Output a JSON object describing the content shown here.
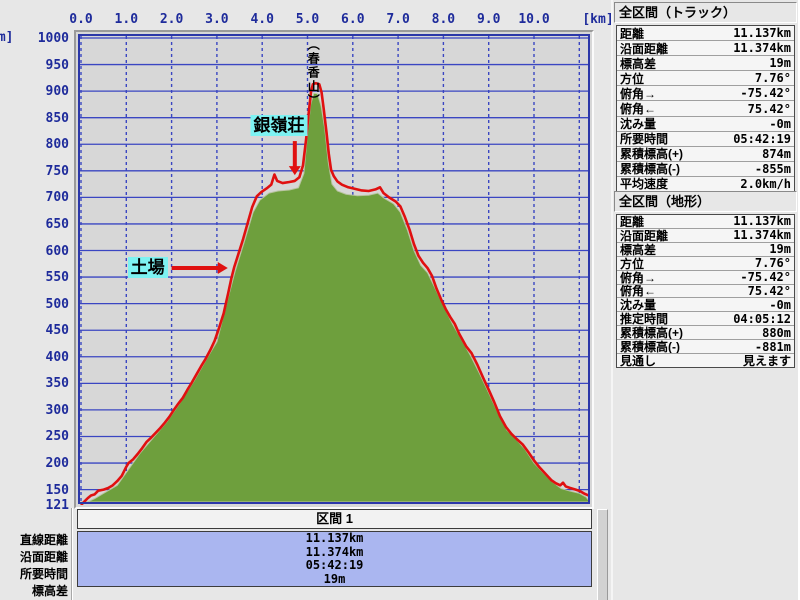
{
  "units": {
    "x": "[km]",
    "y": "[m]"
  },
  "chart_data": {
    "type": "area",
    "title": "",
    "xlabel": "[km]",
    "ylabel": "[m]",
    "xlim": [
      0,
      11.3
    ],
    "ylim": [
      121,
      1000
    ],
    "grid": true,
    "x_tick_values": [
      0,
      1,
      2,
      3,
      4,
      5,
      6,
      7,
      8,
      9,
      10
    ],
    "x_tick_labels": [
      "0.0",
      "1.0",
      "2.0",
      "3.0",
      "4.0",
      "5.0",
      "6.0",
      "7.0",
      "8.0",
      "9.0",
      "10.0"
    ],
    "y_tick_values": [
      1000,
      950,
      900,
      850,
      800,
      750,
      700,
      650,
      600,
      550,
      500,
      450,
      400,
      350,
      300,
      250,
      200,
      150,
      121
    ],
    "y_tick_labels": [
      "1000",
      "950",
      "900",
      "850",
      "800",
      "750",
      "700",
      "650",
      "600",
      "550",
      "500",
      "450",
      "400",
      "350",
      "300",
      "250",
      "200",
      "150",
      "121"
    ],
    "series": [
      {
        "name": "terrain-profile",
        "style": "filled-area-green",
        "points": [
          [
            0,
            121
          ],
          [
            0.3,
            133
          ],
          [
            0.5,
            143
          ],
          [
            0.8,
            158
          ],
          [
            1.0,
            182
          ],
          [
            1.3,
            218
          ],
          [
            1.6,
            248
          ],
          [
            1.9,
            278
          ],
          [
            2.2,
            315
          ],
          [
            2.5,
            355
          ],
          [
            2.8,
            400
          ],
          [
            3.0,
            428
          ],
          [
            3.2,
            495
          ],
          [
            3.4,
            560
          ],
          [
            3.6,
            615
          ],
          [
            3.8,
            672
          ],
          [
            3.95,
            695
          ],
          [
            4.15,
            708
          ],
          [
            4.35,
            712
          ],
          [
            4.6,
            714
          ],
          [
            4.8,
            718
          ],
          [
            4.92,
            745
          ],
          [
            5.0,
            820
          ],
          [
            5.07,
            875
          ],
          [
            5.14,
            896
          ],
          [
            5.22,
            895
          ],
          [
            5.3,
            872
          ],
          [
            5.38,
            830
          ],
          [
            5.46,
            765
          ],
          [
            5.54,
            725
          ],
          [
            5.66,
            712
          ],
          [
            5.85,
            706
          ],
          [
            6.1,
            703
          ],
          [
            6.35,
            704
          ],
          [
            6.55,
            708
          ],
          [
            6.7,
            698
          ],
          [
            6.9,
            688
          ],
          [
            7.05,
            672
          ],
          [
            7.2,
            640
          ],
          [
            7.35,
            600
          ],
          [
            7.5,
            572
          ],
          [
            7.65,
            558
          ],
          [
            7.8,
            532
          ],
          [
            8.0,
            496
          ],
          [
            8.2,
            462
          ],
          [
            8.4,
            432
          ],
          [
            8.6,
            402
          ],
          [
            8.8,
            368
          ],
          [
            9.0,
            332
          ],
          [
            9.2,
            295
          ],
          [
            9.4,
            262
          ],
          [
            9.6,
            245
          ],
          [
            9.8,
            226
          ],
          [
            10.0,
            200
          ],
          [
            10.2,
            182
          ],
          [
            10.4,
            165
          ],
          [
            10.6,
            152
          ],
          [
            10.8,
            147
          ],
          [
            11.0,
            143
          ],
          [
            11.15,
            136
          ],
          [
            11.22,
            130
          ]
        ]
      },
      {
        "name": "gps-track",
        "style": "red-line",
        "points": [
          [
            0,
            121
          ],
          [
            0.08,
            128
          ],
          [
            0.15,
            134
          ],
          [
            0.22,
            139
          ],
          [
            0.3,
            141
          ],
          [
            0.38,
            148
          ],
          [
            0.5,
            150
          ],
          [
            0.6,
            153
          ],
          [
            0.7,
            158
          ],
          [
            0.8,
            166
          ],
          [
            0.9,
            176
          ],
          [
            1.0,
            193
          ],
          [
            1.05,
            200
          ],
          [
            1.15,
            207
          ],
          [
            1.25,
            217
          ],
          [
            1.35,
            228
          ],
          [
            1.45,
            240
          ],
          [
            1.55,
            248
          ],
          [
            1.65,
            257
          ],
          [
            1.75,
            266
          ],
          [
            1.85,
            276
          ],
          [
            1.95,
            287
          ],
          [
            2.05,
            300
          ],
          [
            2.15,
            312
          ],
          [
            2.25,
            323
          ],
          [
            2.35,
            338
          ],
          [
            2.45,
            352
          ],
          [
            2.55,
            367
          ],
          [
            2.65,
            382
          ],
          [
            2.75,
            396
          ],
          [
            2.85,
            412
          ],
          [
            2.95,
            430
          ],
          [
            3.05,
            455
          ],
          [
            3.15,
            482
          ],
          [
            3.25,
            520
          ],
          [
            3.32,
            548
          ],
          [
            3.38,
            568
          ],
          [
            3.48,
            595
          ],
          [
            3.58,
            622
          ],
          [
            3.68,
            652
          ],
          [
            3.78,
            682
          ],
          [
            3.88,
            702
          ],
          [
            3.98,
            710
          ],
          [
            4.1,
            717
          ],
          [
            4.2,
            724
          ],
          [
            4.27,
            743
          ],
          [
            4.33,
            731
          ],
          [
            4.45,
            727
          ],
          [
            4.6,
            729
          ],
          [
            4.72,
            731
          ],
          [
            4.82,
            738
          ],
          [
            4.9,
            760
          ],
          [
            4.97,
            810
          ],
          [
            5.03,
            862
          ],
          [
            5.08,
            900
          ],
          [
            5.12,
            913
          ],
          [
            5.18,
            915
          ],
          [
            5.26,
            913
          ],
          [
            5.31,
            898
          ],
          [
            5.36,
            865
          ],
          [
            5.42,
            822
          ],
          [
            5.47,
            782
          ],
          [
            5.52,
            752
          ],
          [
            5.58,
            740
          ],
          [
            5.66,
            730
          ],
          [
            5.76,
            724
          ],
          [
            5.9,
            719
          ],
          [
            6.05,
            716
          ],
          [
            6.2,
            713
          ],
          [
            6.35,
            712
          ],
          [
            6.5,
            715
          ],
          [
            6.6,
            719
          ],
          [
            6.68,
            708
          ],
          [
            6.8,
            700
          ],
          [
            6.95,
            692
          ],
          [
            7.05,
            683
          ],
          [
            7.15,
            663
          ],
          [
            7.25,
            640
          ],
          [
            7.35,
            612
          ],
          [
            7.45,
            590
          ],
          [
            7.55,
            577
          ],
          [
            7.65,
            567
          ],
          [
            7.75,
            552
          ],
          [
            7.85,
            528
          ],
          [
            7.95,
            508
          ],
          [
            8.05,
            490
          ],
          [
            8.15,
            475
          ],
          [
            8.25,
            462
          ],
          [
            8.35,
            443
          ],
          [
            8.5,
            420
          ],
          [
            8.62,
            407
          ],
          [
            8.75,
            385
          ],
          [
            8.88,
            360
          ],
          [
            9.0,
            338
          ],
          [
            9.12,
            315
          ],
          [
            9.25,
            288
          ],
          [
            9.38,
            268
          ],
          [
            9.5,
            255
          ],
          [
            9.62,
            245
          ],
          [
            9.75,
            235
          ],
          [
            9.88,
            220
          ],
          [
            10.0,
            205
          ],
          [
            10.12,
            192
          ],
          [
            10.25,
            180
          ],
          [
            10.38,
            168
          ],
          [
            10.48,
            162
          ],
          [
            10.58,
            158
          ],
          [
            10.64,
            163
          ],
          [
            10.7,
            156
          ],
          [
            10.8,
            153
          ],
          [
            10.92,
            150
          ],
          [
            11.02,
            147
          ],
          [
            11.12,
            142
          ],
          [
            11.22,
            139
          ]
        ]
      }
    ],
    "annotations": [
      {
        "type": "peak",
        "label": "（春香山）",
        "km": 5.15
      },
      {
        "type": "callout-down",
        "label": "銀嶺荘",
        "km": 4.72,
        "elev_from": 806,
        "elev_to": 742
      },
      {
        "type": "callout-right",
        "label": "土場",
        "km_from": 2.0,
        "km_to": 3.24,
        "elev": 567
      }
    ]
  },
  "section_panel": {
    "title": "区間 1",
    "rows": [
      {
        "label": "直線距離",
        "value": "11.137km"
      },
      {
        "label": "沿面距離",
        "value": "11.374km"
      },
      {
        "label": "所要時間",
        "value": "05:42:19"
      },
      {
        "label": "標高差",
        "value": "19m"
      }
    ]
  },
  "right_panels": [
    {
      "title": "全区間（トラック）",
      "rows": [
        {
          "label": "距離",
          "value": "11.137km"
        },
        {
          "label": "沿面距離",
          "value": "11.374km"
        },
        {
          "label": "標高差",
          "value": "19m"
        },
        {
          "label": "方位",
          "value": "7.76°"
        },
        {
          "label": "俯角→",
          "value": "-75.42°"
        },
        {
          "label": "俯角←",
          "value": "75.42°"
        },
        {
          "label": "沈み量",
          "value": "-0m"
        },
        {
          "label": "所要時間",
          "value": "05:42:19"
        },
        {
          "label": "累積標高(+)",
          "value": "874m"
        },
        {
          "label": "累積標高(-)",
          "value": "-855m"
        },
        {
          "label": "平均速度",
          "value": "2.0km/h"
        }
      ]
    },
    {
      "title": "全区間（地形）",
      "rows": [
        {
          "label": "距離",
          "value": "11.137km"
        },
        {
          "label": "沿面距離",
          "value": "11.374km"
        },
        {
          "label": "標高差",
          "value": "19m"
        },
        {
          "label": "方位",
          "value": "7.76°"
        },
        {
          "label": "俯角→",
          "value": "-75.42°"
        },
        {
          "label": "俯角←",
          "value": "75.42°"
        },
        {
          "label": "沈み量",
          "value": "-0m"
        },
        {
          "label": "推定時間",
          "value": "04:05:12"
        },
        {
          "label": "累積標高(+)",
          "value": "880m"
        },
        {
          "label": "累積標高(-)",
          "value": "-881m"
        },
        {
          "label": "見通し",
          "value": "見えます"
        }
      ]
    }
  ],
  "colors": {
    "page_bg": "#e7e7e7",
    "plot_bg": "#d7d7d7",
    "grid_blue": "#3a46c2",
    "frame_navy": "#2b37a8",
    "area_green": "#6e9f3d",
    "track_red": "#e01010",
    "tick_navy": "#1e2b9b",
    "callout_cyan": "#7df2f2",
    "section_blue": "#aab6f0"
  }
}
